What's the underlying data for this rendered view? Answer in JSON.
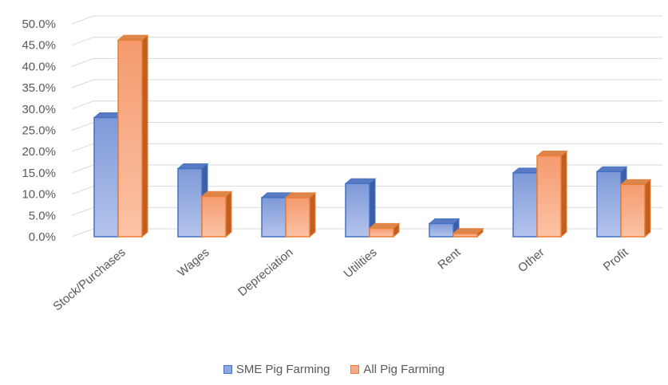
{
  "chart_data": {
    "type": "bar",
    "title": "",
    "xlabel": "",
    "ylabel": "",
    "categories": [
      "Stock/Purchases",
      "Wages",
      "Depreciation",
      "Utilities",
      "Rent",
      "Other",
      "Profit"
    ],
    "series": [
      {
        "name": "SME Pig Farming",
        "values": [
          28.0,
          16.0,
          9.2,
          12.5,
          3.1,
          15.0,
          15.3
        ]
      },
      {
        "name": "All Pig Farming",
        "values": [
          46.2,
          9.5,
          9.2,
          2.0,
          0.8,
          19.0,
          12.3
        ]
      }
    ],
    "ylim": [
      0,
      50
    ],
    "yticks": [
      "0.0%",
      "5.0%",
      "10.0%",
      "15.0%",
      "20.0%",
      "25.0%",
      "30.0%",
      "35.0%",
      "40.0%",
      "45.0%",
      "50.0%"
    ],
    "grid": true,
    "legend_position": "bottom",
    "colors": {
      "SME Pig Farming": {
        "front": "#8fa8e0",
        "edge": "#4472c4",
        "side": "#3b5ea8",
        "top": "#5a7bc4"
      },
      "All Pig Farming": {
        "front": "#f8a985",
        "edge": "#ed7d31",
        "side": "#c05f22",
        "top": "#d9864f"
      },
      "grid": "#d9d9d9",
      "text": "#595959"
    }
  }
}
